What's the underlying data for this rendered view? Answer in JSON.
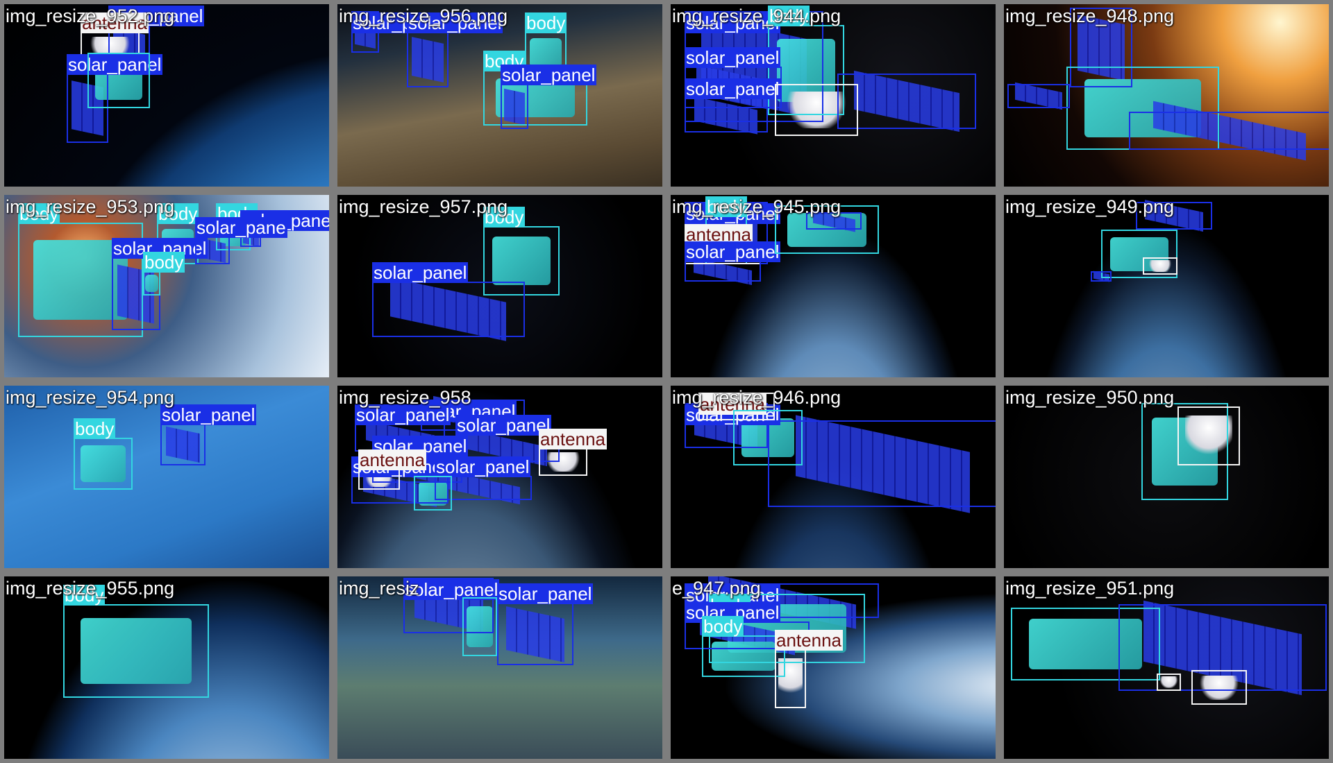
{
  "colors": {
    "body": "#33d6e0",
    "solar_panel": "#1a2fe6",
    "antenna": "#f5f5f5",
    "frame": "#7e7e7e"
  },
  "tiles": [
    {
      "file": "img_resize_952.png",
      "scene": "earth-blue",
      "boxes": [
        {
          "cls": "solar_panel",
          "label": "solar_panel"
        },
        {
          "cls": "antenna",
          "label": "antenna"
        },
        {
          "cls": "solar_panel",
          "label": "solar_panel"
        },
        {
          "cls": "body",
          "label": ""
        }
      ]
    },
    {
      "file": "img_resize_956.png",
      "scene": "earth-desert",
      "boxes": [
        {
          "cls": "solar_panel",
          "label": "solar_panel"
        },
        {
          "cls": "solar_panel",
          "label": "solar_panel"
        },
        {
          "cls": "body",
          "label": "body"
        },
        {
          "cls": "body",
          "label": "body"
        },
        {
          "cls": "solar_panel",
          "label": "solar_panel"
        }
      ]
    },
    {
      "file": "img_resize_944.png",
      "scene": "space-dark",
      "boxes": [
        {
          "cls": "solar_panel",
          "label": "solar_panel"
        },
        {
          "cls": "body",
          "label": "body"
        },
        {
          "cls": "solar_panel",
          "label": "solar_panel"
        },
        {
          "cls": "solar_panel",
          "label": "solar_panel"
        },
        {
          "cls": "solar_panel",
          "label": ""
        },
        {
          "cls": "antenna",
          "label": ""
        }
      ]
    },
    {
      "file": "img_resize_948.png",
      "scene": "space-sun",
      "boxes": [
        {
          "cls": "solar_panel",
          "label": ""
        },
        {
          "cls": "body",
          "label": ""
        },
        {
          "cls": "solar_panel",
          "label": ""
        },
        {
          "cls": "solar_panel",
          "label": ""
        }
      ]
    },
    {
      "file": "img_resize_953.png",
      "scene": "earth-glow",
      "boxes": [
        {
          "cls": "body",
          "label": "body"
        },
        {
          "cls": "body",
          "label": "body"
        },
        {
          "cls": "body",
          "label": "body"
        },
        {
          "cls": "solar_panel",
          "label": "solar_panel"
        },
        {
          "cls": "solar_panel",
          "label": "solar_panel"
        },
        {
          "cls": "solar_panel",
          "label": "solar_pane"
        },
        {
          "cls": "body",
          "label": "body"
        }
      ]
    },
    {
      "file": "img_resize_957.png",
      "scene": "space-stars",
      "boxes": [
        {
          "cls": "body",
          "label": "body"
        },
        {
          "cls": "solar_panel",
          "label": "solar_panel"
        }
      ]
    },
    {
      "file": "img_resize_945.png",
      "scene": "earth-red",
      "boxes": [
        {
          "cls": "solar_panel",
          "label": "solar_panel"
        },
        {
          "cls": "body",
          "label": "body"
        },
        {
          "cls": "antenna",
          "label": "antenna"
        },
        {
          "cls": "solar_panel",
          "label": "solar_panel"
        },
        {
          "cls": "body",
          "label": ""
        },
        {
          "cls": "solar_panel",
          "label": ""
        }
      ]
    },
    {
      "file": "img_resize_949.png",
      "scene": "earth-night",
      "boxes": [
        {
          "cls": "solar_panel",
          "label": ""
        },
        {
          "cls": "body",
          "label": ""
        },
        {
          "cls": "antenna",
          "label": ""
        },
        {
          "cls": "solar_panel",
          "label": ""
        }
      ]
    },
    {
      "file": "img_resize_954.png",
      "scene": "earth-ocean",
      "boxes": [
        {
          "cls": "body",
          "label": "body"
        },
        {
          "cls": "solar_panel",
          "label": "solar_panel"
        }
      ]
    },
    {
      "file": "img_resize_958",
      "scene": "earth-horizon",
      "boxes": [
        {
          "cls": "solar_panel",
          "label": "solar_panel"
        },
        {
          "cls": "solar_panel",
          "label": "solar_panel"
        },
        {
          "cls": "solar_panel",
          "label": "solar_panel"
        },
        {
          "cls": "solar_panel",
          "label": "solar_panel"
        },
        {
          "cls": "solar_panel",
          "label": "solar_panel"
        },
        {
          "cls": "antenna",
          "label": "antenna"
        },
        {
          "cls": "antenna",
          "label": "antenna"
        },
        {
          "cls": "solar_panel",
          "label": "solar_panel"
        },
        {
          "cls": "body",
          "label": ""
        }
      ]
    },
    {
      "file": "img_resize_946.png",
      "scene": "earth-edge",
      "boxes": [
        {
          "cls": "solar_panel",
          "label": "solar_panel"
        },
        {
          "cls": "antenna",
          "label": "antenna"
        },
        {
          "cls": "body",
          "label": ""
        },
        {
          "cls": "solar_panel",
          "label": ""
        }
      ]
    },
    {
      "file": "img_resize_950.png",
      "scene": "space-planets",
      "boxes": [
        {
          "cls": "body",
          "label": ""
        },
        {
          "cls": "antenna",
          "label": ""
        }
      ]
    },
    {
      "file": "img_resize_955.png",
      "scene": "earth-cloud",
      "boxes": [
        {
          "cls": "body",
          "label": "body"
        }
      ]
    },
    {
      "file": "img_resiz",
      "scene": "earth-land",
      "boxes": [
        {
          "cls": "solar_panel",
          "label": "solar_panel"
        },
        {
          "cls": "solar_panel",
          "label": "solar_panel"
        },
        {
          "cls": "body",
          "label": ""
        }
      ]
    },
    {
      "file": "e_947.png",
      "scene": "earth-limb",
      "boxes": [
        {
          "cls": "solar_panel",
          "label": "solar_panel"
        },
        {
          "cls": "body",
          "label": "body"
        },
        {
          "cls": "solar_panel",
          "label": "solar_panel"
        },
        {
          "cls": "body",
          "label": "body"
        },
        {
          "cls": "antenna",
          "label": "antenna"
        }
      ]
    },
    {
      "file": "img_resize_951.png",
      "scene": "space-dark",
      "boxes": [
        {
          "cls": "body",
          "label": ""
        },
        {
          "cls": "solar_panel",
          "label": ""
        },
        {
          "cls": "antenna",
          "label": ""
        },
        {
          "cls": "antenna",
          "label": ""
        }
      ]
    }
  ]
}
